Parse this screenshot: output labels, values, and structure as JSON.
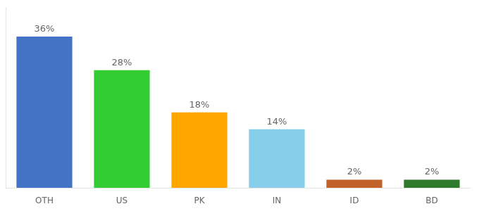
{
  "chart_data": {
    "type": "bar",
    "categories": [
      "OTH",
      "US",
      "PK",
      "IN",
      "ID",
      "BD"
    ],
    "values": [
      36,
      28,
      18,
      14,
      2,
      2
    ],
    "value_labels": [
      "36%",
      "28%",
      "18%",
      "14%",
      "2%",
      "2%"
    ],
    "colors": [
      "#4472C4",
      "#33CC33",
      "#FFA500",
      "#87CEEB",
      "#C0622A",
      "#2D7A2D"
    ],
    "ylim": [
      0,
      43
    ],
    "data_labels": true,
    "tick_labels": "x",
    "grid": false
  }
}
